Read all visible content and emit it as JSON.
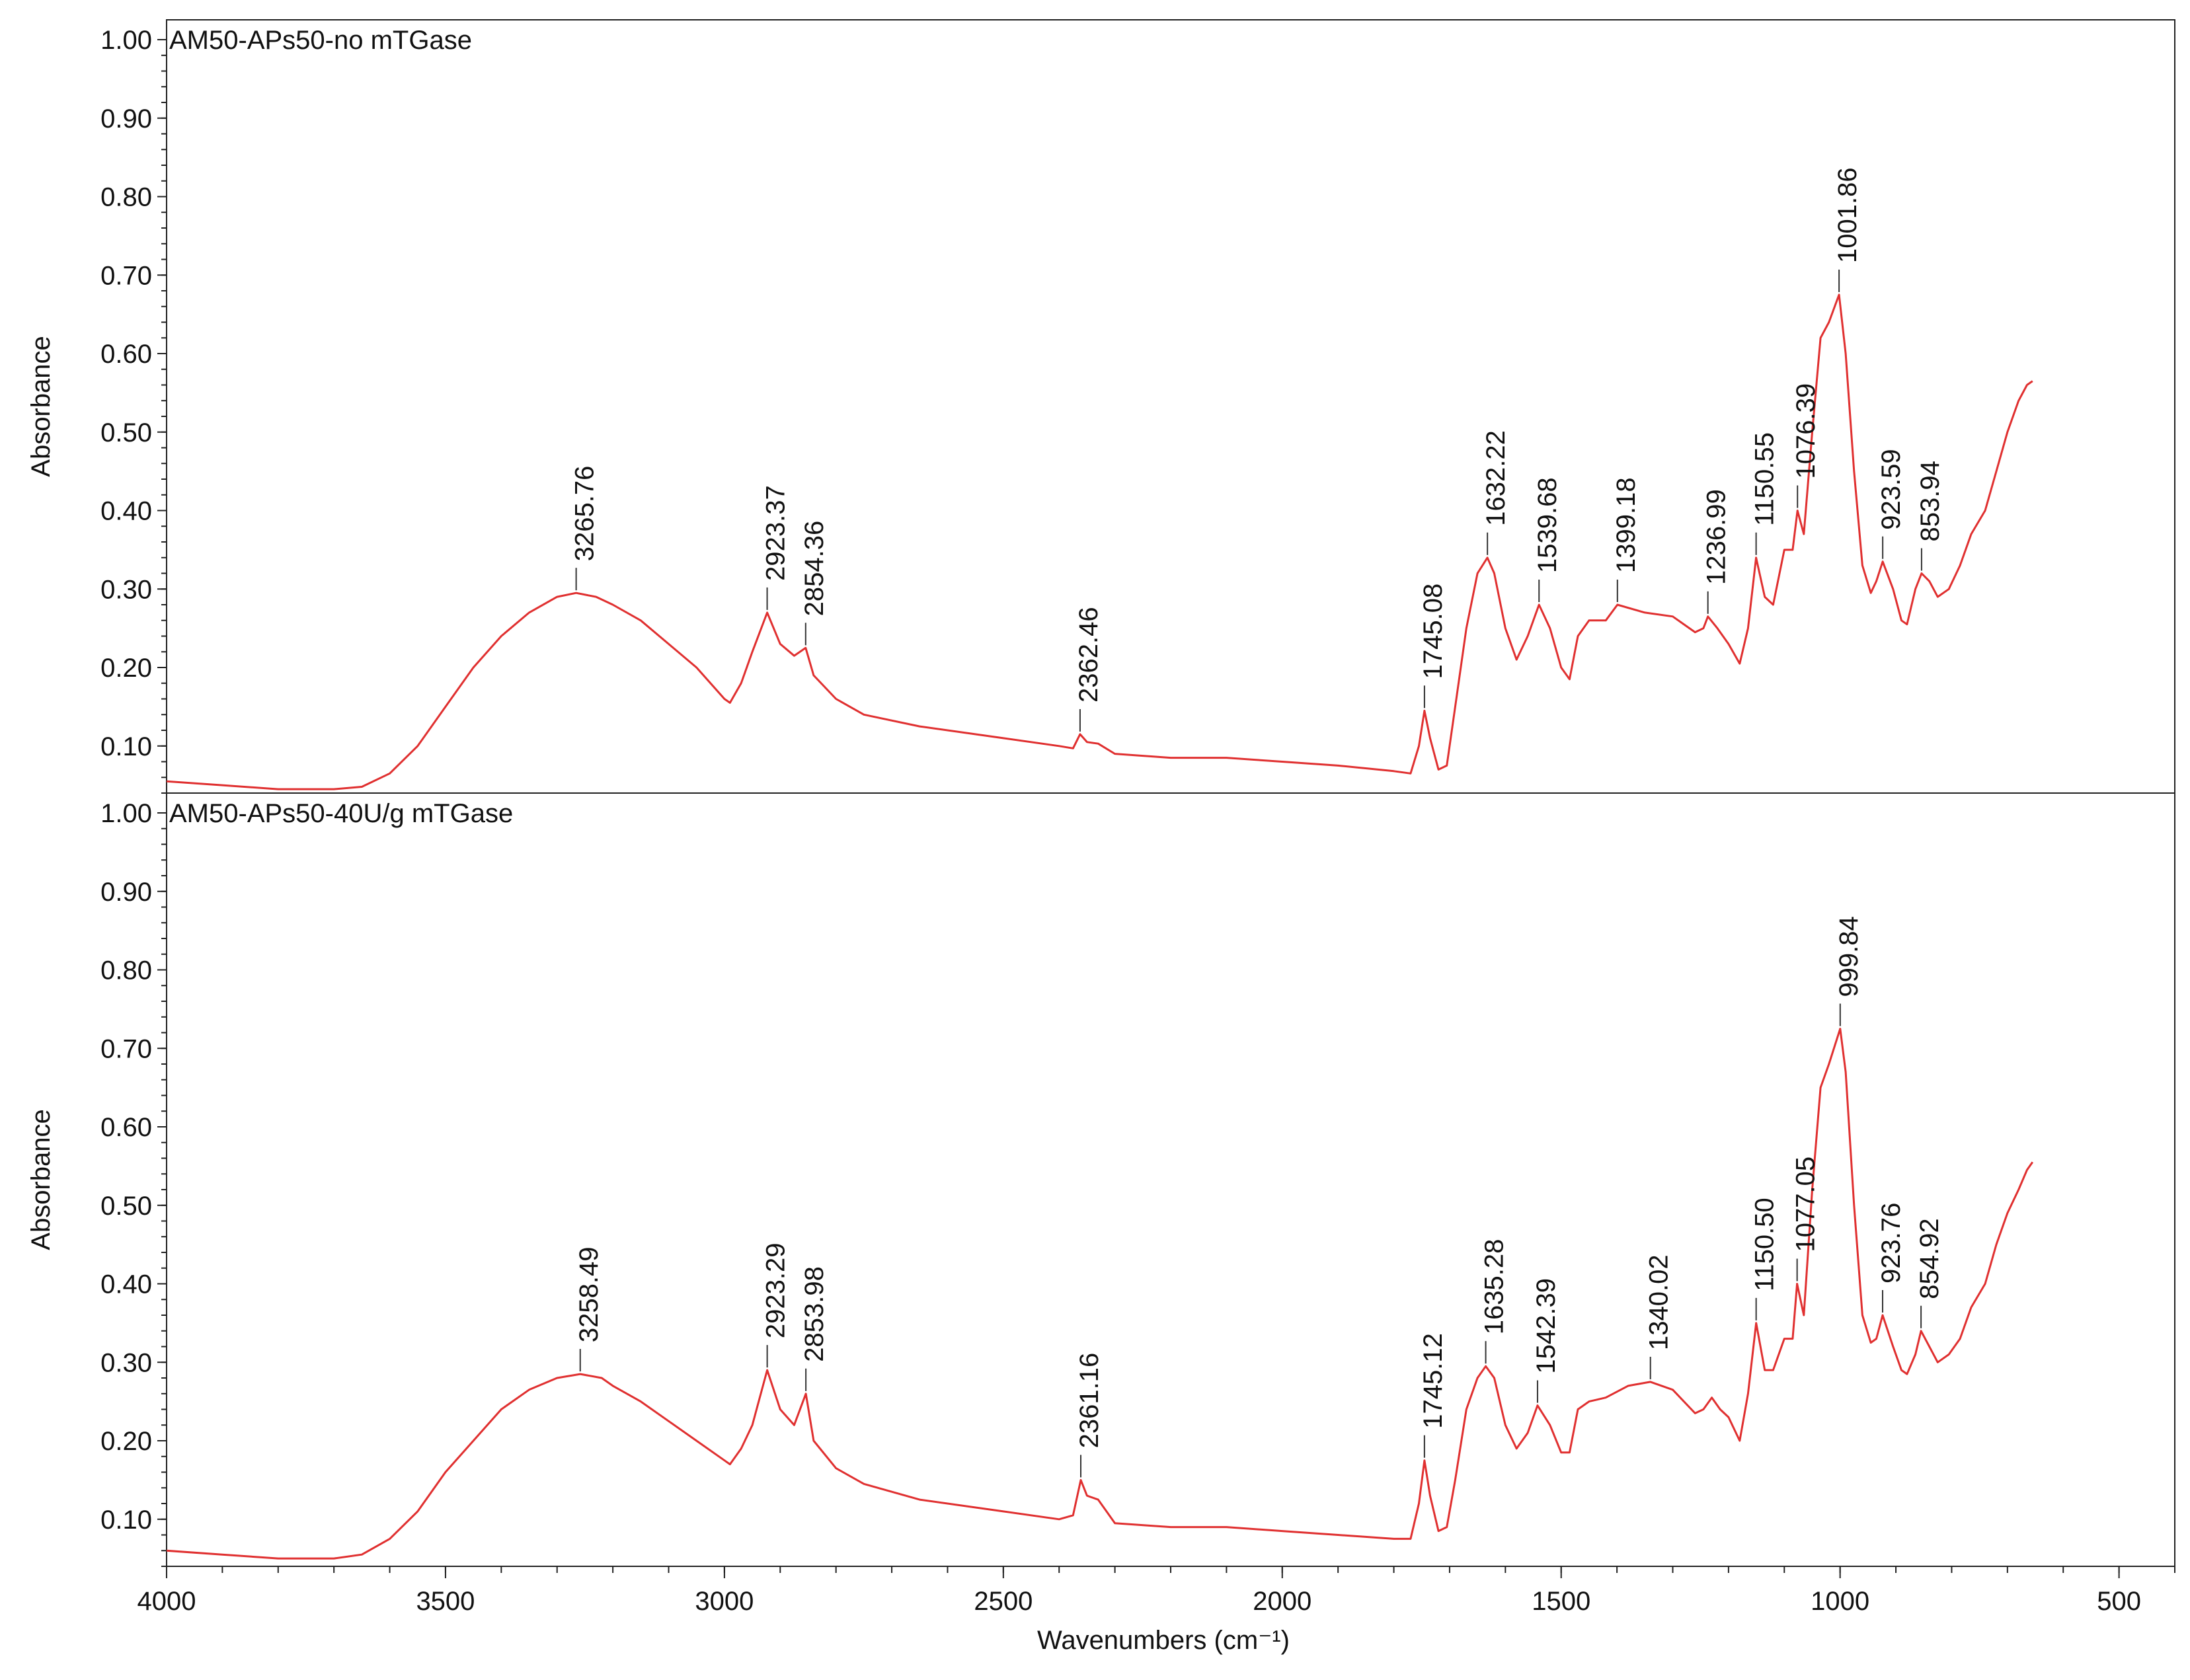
{
  "chart_data": {
    "type": "line",
    "xlabel": "Wavenumbers (cm⁻¹)",
    "xlim": [
      4000,
      400
    ],
    "x_ticks": [
      "4000",
      "3500",
      "3000",
      "2500",
      "2000",
      "1500",
      "1000",
      "500"
    ],
    "x_tick_values": [
      4000,
      3500,
      3000,
      2500,
      2000,
      1500,
      1000,
      500
    ],
    "line_color": "#e03030",
    "panels": [
      {
        "title": "AM50-APs50-no mTGase",
        "ylabel": "Absorbance",
        "ylim": [
          0.04,
          1.0
        ],
        "y_ticks": [
          "1.00",
          "0.90",
          "0.80",
          "0.70",
          "0.60",
          "0.50",
          "0.40",
          "0.30",
          "0.20",
          "0.10"
        ],
        "y_tick_values": [
          1.0,
          0.9,
          0.8,
          0.7,
          0.6,
          0.5,
          0.4,
          0.3,
          0.2,
          0.1
        ],
        "series": {
          "name": "AM50-APs50-no mTGase",
          "points": [
            [
              4000,
              0.055
            ],
            [
              3900,
              0.05
            ],
            [
              3800,
              0.045
            ],
            [
              3700,
              0.045
            ],
            [
              3650,
              0.048
            ],
            [
              3600,
              0.065
            ],
            [
              3550,
              0.1
            ],
            [
              3500,
              0.15
            ],
            [
              3450,
              0.2
            ],
            [
              3400,
              0.24
            ],
            [
              3350,
              0.27
            ],
            [
              3300,
              0.29
            ],
            [
              3265.76,
              0.295
            ],
            [
              3230,
              0.29
            ],
            [
              3200,
              0.28
            ],
            [
              3150,
              0.26
            ],
            [
              3100,
              0.23
            ],
            [
              3050,
              0.2
            ],
            [
              3000,
              0.16
            ],
            [
              2990,
              0.155
            ],
            [
              2970,
              0.18
            ],
            [
              2950,
              0.22
            ],
            [
              2923.37,
              0.27
            ],
            [
              2900,
              0.23
            ],
            [
              2875,
              0.215
            ],
            [
              2854.36,
              0.225
            ],
            [
              2840,
              0.19
            ],
            [
              2800,
              0.16
            ],
            [
              2750,
              0.14
            ],
            [
              2650,
              0.125
            ],
            [
              2500,
              0.11
            ],
            [
              2400,
              0.1
            ],
            [
              2375,
              0.097
            ],
            [
              2362.46,
              0.115
            ],
            [
              2350,
              0.105
            ],
            [
              2330,
              0.103
            ],
            [
              2300,
              0.09
            ],
            [
              2200,
              0.085
            ],
            [
              2100,
              0.085
            ],
            [
              2000,
              0.08
            ],
            [
              1900,
              0.075
            ],
            [
              1800,
              0.068
            ],
            [
              1770,
              0.065
            ],
            [
              1755,
              0.1
            ],
            [
              1745.08,
              0.145
            ],
            [
              1735,
              0.11
            ],
            [
              1720,
              0.07
            ],
            [
              1705,
              0.075
            ],
            [
              1690,
              0.15
            ],
            [
              1670,
              0.25
            ],
            [
              1650,
              0.32
            ],
            [
              1632.22,
              0.34
            ],
            [
              1620,
              0.32
            ],
            [
              1600,
              0.25
            ],
            [
              1580,
              0.21
            ],
            [
              1560,
              0.24
            ],
            [
              1539.68,
              0.28
            ],
            [
              1520,
              0.25
            ],
            [
              1500,
              0.2
            ],
            [
              1485,
              0.185
            ],
            [
              1470,
              0.24
            ],
            [
              1450,
              0.26
            ],
            [
              1420,
              0.26
            ],
            [
              1399.18,
              0.28
            ],
            [
              1350,
              0.27
            ],
            [
              1300,
              0.265
            ],
            [
              1260,
              0.245
            ],
            [
              1245,
              0.25
            ],
            [
              1236.99,
              0.265
            ],
            [
              1220,
              0.25
            ],
            [
              1200,
              0.23
            ],
            [
              1180,
              0.205
            ],
            [
              1165,
              0.25
            ],
            [
              1150.55,
              0.34
            ],
            [
              1135,
              0.29
            ],
            [
              1120,
              0.28
            ],
            [
              1100,
              0.35
            ],
            [
              1085,
              0.35
            ],
            [
              1076.39,
              0.4
            ],
            [
              1065,
              0.37
            ],
            [
              1050,
              0.5
            ],
            [
              1035,
              0.62
            ],
            [
              1020,
              0.64
            ],
            [
              1001.86,
              0.675
            ],
            [
              990,
              0.6
            ],
            [
              975,
              0.45
            ],
            [
              960,
              0.33
            ],
            [
              945,
              0.295
            ],
            [
              935,
              0.31
            ],
            [
              923.59,
              0.335
            ],
            [
              905,
              0.3
            ],
            [
              890,
              0.26
            ],
            [
              880,
              0.255
            ],
            [
              865,
              0.3
            ],
            [
              853.94,
              0.32
            ],
            [
              840,
              0.31
            ],
            [
              825,
              0.29
            ],
            [
              805,
              0.3
            ],
            [
              785,
              0.33
            ],
            [
              765,
              0.37
            ],
            [
              740,
              0.4
            ],
            [
              720,
              0.45
            ],
            [
              700,
              0.5
            ],
            [
              680,
              0.54
            ],
            [
              665,
              0.56
            ],
            [
              655,
              0.565
            ]
          ]
        },
        "peaks": [
          {
            "label": "3265.76",
            "x": 3265.76,
            "y": 0.295
          },
          {
            "label": "2923.37",
            "x": 2923.37,
            "y": 0.27
          },
          {
            "label": "2854.36",
            "x": 2854.36,
            "y": 0.225
          },
          {
            "label": "2362.46",
            "x": 2362.46,
            "y": 0.115
          },
          {
            "label": "1745.08",
            "x": 1745.08,
            "y": 0.145
          },
          {
            "label": "1632.22",
            "x": 1632.22,
            "y": 0.34
          },
          {
            "label": "1539.68",
            "x": 1539.68,
            "y": 0.28
          },
          {
            "label": "1399.18",
            "x": 1399.18,
            "y": 0.28
          },
          {
            "label": "1236.99",
            "x": 1236.99,
            "y": 0.265
          },
          {
            "label": "1150.55",
            "x": 1150.55,
            "y": 0.34
          },
          {
            "label": "1076.39",
            "x": 1076.39,
            "y": 0.4
          },
          {
            "label": "1001.86",
            "x": 1001.86,
            "y": 0.675
          },
          {
            "label": "923.59",
            "x": 923.59,
            "y": 0.335
          },
          {
            "label": "853.94",
            "x": 853.94,
            "y": 0.32
          }
        ]
      },
      {
        "title": "AM50-APs50-40U/g mTGase",
        "ylabel": "Absorbance",
        "ylim": [
          0.04,
          1.0
        ],
        "y_ticks": [
          "1.00",
          "0.90",
          "0.80",
          "0.70",
          "0.60",
          "0.50",
          "0.40",
          "0.30",
          "0.20",
          "0.10"
        ],
        "y_tick_values": [
          1.0,
          0.9,
          0.8,
          0.7,
          0.6,
          0.5,
          0.4,
          0.3,
          0.2,
          0.1
        ],
        "series": {
          "name": "AM50-APs50-40U/g mTGase",
          "points": [
            [
              4000,
              0.06
            ],
            [
              3900,
              0.055
            ],
            [
              3800,
              0.05
            ],
            [
              3700,
              0.05
            ],
            [
              3650,
              0.055
            ],
            [
              3600,
              0.075
            ],
            [
              3550,
              0.11
            ],
            [
              3500,
              0.16
            ],
            [
              3450,
              0.2
            ],
            [
              3400,
              0.24
            ],
            [
              3350,
              0.265
            ],
            [
              3300,
              0.28
            ],
            [
              3258.49,
              0.285
            ],
            [
              3220,
              0.28
            ],
            [
              3200,
              0.27
            ],
            [
              3150,
              0.25
            ],
            [
              3100,
              0.225
            ],
            [
              3050,
              0.2
            ],
            [
              3000,
              0.175
            ],
            [
              2990,
              0.17
            ],
            [
              2970,
              0.19
            ],
            [
              2950,
              0.22
            ],
            [
              2923.29,
              0.29
            ],
            [
              2900,
              0.24
            ],
            [
              2875,
              0.22
            ],
            [
              2853.98,
              0.26
            ],
            [
              2840,
              0.2
            ],
            [
              2800,
              0.165
            ],
            [
              2750,
              0.145
            ],
            [
              2650,
              0.125
            ],
            [
              2500,
              0.11
            ],
            [
              2400,
              0.1
            ],
            [
              2375,
              0.105
            ],
            [
              2361.16,
              0.15
            ],
            [
              2350,
              0.13
            ],
            [
              2330,
              0.125
            ],
            [
              2300,
              0.095
            ],
            [
              2200,
              0.09
            ],
            [
              2100,
              0.09
            ],
            [
              2000,
              0.085
            ],
            [
              1900,
              0.08
            ],
            [
              1800,
              0.075
            ],
            [
              1770,
              0.075
            ],
            [
              1755,
              0.12
            ],
            [
              1745.12,
              0.175
            ],
            [
              1735,
              0.13
            ],
            [
              1720,
              0.085
            ],
            [
              1705,
              0.09
            ],
            [
              1690,
              0.15
            ],
            [
              1670,
              0.24
            ],
            [
              1650,
              0.28
            ],
            [
              1635.28,
              0.295
            ],
            [
              1620,
              0.28
            ],
            [
              1600,
              0.22
            ],
            [
              1580,
              0.19
            ],
            [
              1560,
              0.21
            ],
            [
              1542.39,
              0.245
            ],
            [
              1520,
              0.22
            ],
            [
              1500,
              0.185
            ],
            [
              1485,
              0.185
            ],
            [
              1470,
              0.24
            ],
            [
              1450,
              0.25
            ],
            [
              1420,
              0.255
            ],
            [
              1380,
              0.27
            ],
            [
              1340.02,
              0.275
            ],
            [
              1300,
              0.265
            ],
            [
              1260,
              0.235
            ],
            [
              1245,
              0.24
            ],
            [
              1230,
              0.255
            ],
            [
              1215,
              0.24
            ],
            [
              1200,
              0.23
            ],
            [
              1180,
              0.2
            ],
            [
              1165,
              0.26
            ],
            [
              1150.5,
              0.35
            ],
            [
              1135,
              0.29
            ],
            [
              1120,
              0.29
            ],
            [
              1100,
              0.33
            ],
            [
              1085,
              0.33
            ],
            [
              1077.05,
              0.4
            ],
            [
              1065,
              0.36
            ],
            [
              1050,
              0.52
            ],
            [
              1035,
              0.65
            ],
            [
              1020,
              0.68
            ],
            [
              999.84,
              0.725
            ],
            [
              990,
              0.67
            ],
            [
              975,
              0.5
            ],
            [
              960,
              0.36
            ],
            [
              945,
              0.325
            ],
            [
              935,
              0.33
            ],
            [
              923.76,
              0.36
            ],
            [
              905,
              0.32
            ],
            [
              890,
              0.29
            ],
            [
              880,
              0.285
            ],
            [
              865,
              0.31
            ],
            [
              854.92,
              0.34
            ],
            [
              840,
              0.32
            ],
            [
              825,
              0.3
            ],
            [
              805,
              0.31
            ],
            [
              785,
              0.33
            ],
            [
              765,
              0.37
            ],
            [
              740,
              0.4
            ],
            [
              720,
              0.45
            ],
            [
              700,
              0.49
            ],
            [
              680,
              0.52
            ],
            [
              665,
              0.545
            ],
            [
              655,
              0.555
            ]
          ]
        },
        "peaks": [
          {
            "label": "3258.49",
            "x": 3258.49,
            "y": 0.285
          },
          {
            "label": "2923.29",
            "x": 2923.29,
            "y": 0.29
          },
          {
            "label": "2853.98",
            "x": 2853.98,
            "y": 0.26
          },
          {
            "label": "2361.16",
            "x": 2361.16,
            "y": 0.15
          },
          {
            "label": "1745.12",
            "x": 1745.12,
            "y": 0.175
          },
          {
            "label": "1635.28",
            "x": 1635.28,
            "y": 0.295
          },
          {
            "label": "1542.39",
            "x": 1542.39,
            "y": 0.245
          },
          {
            "label": "1340.02",
            "x": 1340.02,
            "y": 0.275
          },
          {
            "label": "1150.50",
            "x": 1150.5,
            "y": 0.35
          },
          {
            "label": "1077.05",
            "x": 1077.05,
            "y": 0.4
          },
          {
            "label": "999.84",
            "x": 999.84,
            "y": 0.725
          },
          {
            "label": "923.76",
            "x": 923.76,
            "y": 0.36
          },
          {
            "label": "854.92",
            "x": 854.92,
            "y": 0.34
          }
        ]
      }
    ]
  }
}
